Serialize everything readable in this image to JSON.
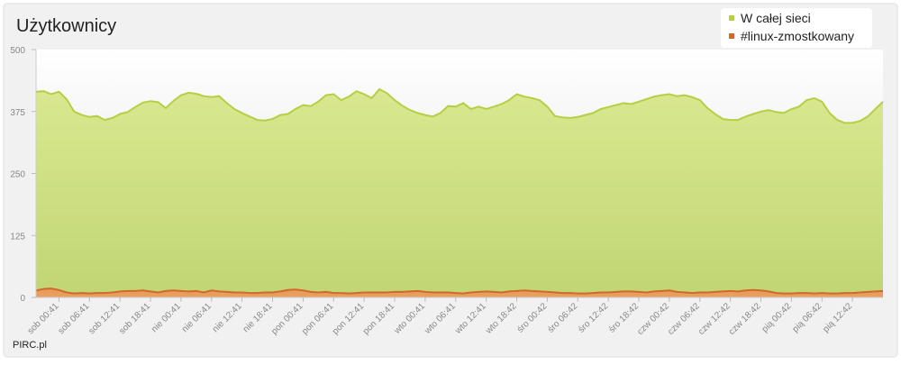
{
  "chart_data": {
    "type": "area",
    "title": "Użytkownicy",
    "source": "PIRC.pl",
    "categories": [
      null,
      null,
      null,
      "sob 00:41",
      null,
      null,
      null,
      "sob 06:41",
      null,
      null,
      null,
      "sob 12:41",
      null,
      null,
      null,
      "sob 18:41",
      null,
      null,
      null,
      "nie 00:41",
      null,
      null,
      null,
      "nie 06:41",
      null,
      null,
      null,
      "nie 12:41",
      null,
      null,
      null,
      "nie 18:41",
      null,
      null,
      null,
      "pon 00:41",
      null,
      null,
      null,
      "pon 06:41",
      null,
      null,
      null,
      "pon 12:41",
      null,
      null,
      null,
      "pon 18:41",
      null,
      null,
      null,
      "wto 00:41",
      null,
      null,
      null,
      "wto 06:41",
      null,
      null,
      null,
      "wto 12:41",
      null,
      null,
      null,
      "wto 18:42",
      null,
      null,
      null,
      "śro 00:42",
      null,
      null,
      null,
      "śro 06:42",
      null,
      null,
      null,
      "śro 12:42",
      null,
      null,
      null,
      "śro 18:42",
      null,
      null,
      null,
      "czw 00:42",
      null,
      null,
      null,
      "czw 06:42",
      null,
      null,
      null,
      "czw 12:42",
      null,
      null,
      null,
      "czw 18:42",
      null,
      null,
      null,
      "pią 00:42",
      null,
      null,
      null,
      "pią 06:42",
      null,
      null,
      null,
      "pią 12:42",
      null,
      null,
      null,
      null
    ],
    "series": [
      {
        "name": "W całej sieci",
        "color": "#b5cf45",
        "values": [
          415,
          416,
          410,
          415,
          400,
          375,
          368,
          364,
          366,
          358,
          362,
          370,
          374,
          384,
          393,
          396,
          394,
          382,
          396,
          408,
          413,
          411,
          406,
          404,
          406,
          392,
          380,
          372,
          365,
          358,
          357,
          360,
          368,
          370,
          380,
          388,
          386,
          395,
          408,
          410,
          398,
          405,
          416,
          410,
          402,
          420,
          412,
          398,
          387,
          378,
          372,
          368,
          365,
          372,
          386,
          385,
          392,
          380,
          385,
          380,
          385,
          390,
          398,
          410,
          405,
          402,
          398,
          385,
          366,
          363,
          362,
          364,
          368,
          372,
          380,
          384,
          388,
          392,
          390,
          395,
          400,
          405,
          408,
          410,
          406,
          408,
          404,
          398,
          382,
          370,
          360,
          358,
          358,
          365,
          370,
          375,
          378,
          374,
          372,
          380,
          385,
          398,
          402,
          395,
          372,
          358,
          352,
          352,
          356,
          365,
          380,
          395
        ]
      },
      {
        "name": "#linux-zmostkowany",
        "color": "#d0692a",
        "values": [
          14,
          17,
          18,
          15,
          10,
          8,
          9,
          8,
          9,
          9,
          10,
          12,
          13,
          13,
          14,
          12,
          10,
          13,
          14,
          13,
          12,
          13,
          10,
          14,
          12,
          11,
          10,
          10,
          9,
          9,
          10,
          10,
          12,
          15,
          16,
          14,
          11,
          10,
          11,
          9,
          9,
          8,
          9,
          10,
          10,
          10,
          10,
          11,
          11,
          12,
          13,
          11,
          10,
          10,
          10,
          9,
          8,
          10,
          11,
          12,
          11,
          10,
          12,
          13,
          14,
          13,
          12,
          11,
          10,
          9,
          9,
          8,
          8,
          9,
          10,
          10,
          11,
          12,
          12,
          11,
          10,
          12,
          13,
          14,
          11,
          10,
          9,
          10,
          10,
          11,
          12,
          13,
          12,
          14,
          15,
          14,
          12,
          9,
          8,
          8,
          9,
          9,
          8,
          9,
          8,
          8,
          9,
          9,
          10,
          11,
          12,
          13
        ]
      }
    ],
    "ylim": [
      0,
      500
    ],
    "yticks": [
      0,
      125,
      250,
      375,
      500
    ]
  }
}
